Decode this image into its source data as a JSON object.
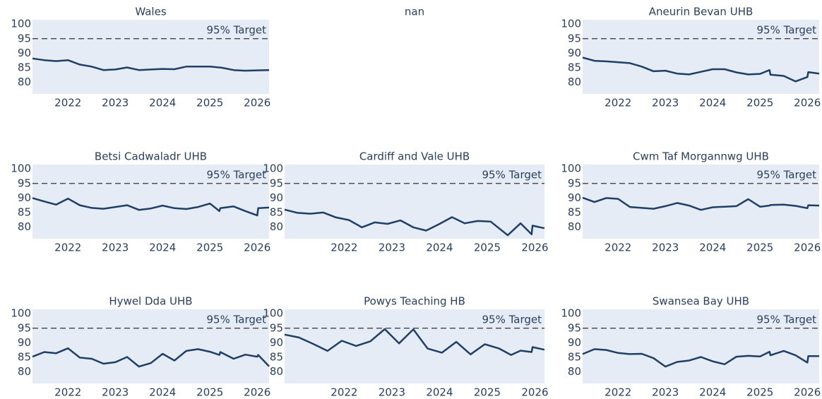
{
  "chart_data": [
    {
      "type": "line",
      "title": "Wales",
      "color": "#1f3f66",
      "target": 95,
      "target_label": "95% Target",
      "x": [
        2021.25,
        2021.5,
        2021.75,
        2022.0,
        2022.25,
        2022.5,
        2022.75,
        2023.0,
        2023.25,
        2023.5,
        2023.75,
        2024.0,
        2024.25,
        2024.5,
        2024.75,
        2025.0,
        2025.25,
        2025.5,
        2025.75,
        2026.0,
        2026.25
      ],
      "values": [
        88.2,
        87.6,
        87.3,
        87.6,
        86.1,
        85.4,
        84.2,
        84.4,
        85.1,
        84.2,
        84.4,
        84.6,
        84.5,
        85.4,
        85.4,
        85.4,
        85,
        84.2,
        84,
        84.1,
        84.2
      ],
      "xlim": [
        2021.25,
        2026.25
      ],
      "ylim": [
        76,
        101.5
      ],
      "xticks": [
        2022,
        2023,
        2024,
        2025,
        2026
      ],
      "yticks": [
        80,
        85,
        90,
        95,
        100
      ],
      "grid": false
    },
    {
      "type": "line",
      "title": "nan"
    },
    {
      "type": "line",
      "title": "Aneurin Bevan UHB",
      "color": "#1f3f66",
      "target": 95,
      "target_label": "95% Target",
      "x": [
        2021.25,
        2021.5,
        2021.75,
        2022.0,
        2022.25,
        2022.5,
        2022.75,
        2023.0,
        2023.25,
        2023.5,
        2023.75,
        2024.0,
        2024.25,
        2024.5,
        2024.75,
        2025.0,
        2025.2,
        2025.22,
        2025.5,
        2025.75,
        2026.0,
        2026.02,
        2026.25
      ],
      "values": [
        88.5,
        87.4,
        87.2,
        86.9,
        86.6,
        85.4,
        83.8,
        84,
        83,
        82.7,
        83.6,
        84.5,
        84.5,
        83.4,
        82.7,
        82.9,
        84.2,
        82.6,
        82.2,
        80.3,
        81.8,
        83.5,
        83
      ],
      "xlim": [
        2021.25,
        2026.25
      ],
      "ylim": [
        76,
        101.5
      ],
      "xticks": [
        2022,
        2023,
        2024,
        2025,
        2026
      ],
      "yticks": [
        80,
        85,
        90,
        95,
        100
      ],
      "grid": false
    },
    {
      "type": "line",
      "title": "Betsi Cadwaladr UHB",
      "color": "#1f3f66",
      "target": 95,
      "target_label": "95% Target",
      "x": [
        2021.25,
        2021.5,
        2021.75,
        2022.0,
        2022.25,
        2022.5,
        2022.75,
        2023.0,
        2023.25,
        2023.5,
        2023.75,
        2024.0,
        2024.25,
        2024.5,
        2024.75,
        2025.0,
        2025.2,
        2025.22,
        2025.5,
        2025.75,
        2026.0,
        2026.02,
        2026.25
      ],
      "values": [
        90,
        88.8,
        87.7,
        89.8,
        87.5,
        86.6,
        86.3,
        86.9,
        87.5,
        85.9,
        86.4,
        87.4,
        86.5,
        86.2,
        86.9,
        88.1,
        85.5,
        86.5,
        87.1,
        85.5,
        84,
        86.5,
        86.7
      ],
      "xlim": [
        2021.25,
        2026.25
      ],
      "ylim": [
        76,
        101.5
      ],
      "xticks": [
        2022,
        2023,
        2024,
        2025,
        2026
      ],
      "yticks": [
        80,
        85,
        90,
        95,
        100
      ],
      "grid": false
    },
    {
      "type": "line",
      "title": "Cardiff and Vale UHB",
      "color": "#1f3f66",
      "target": 95,
      "target_label": "95% Target",
      "x": [
        2020.75,
        2021.02,
        2021.29,
        2021.56,
        2021.83,
        2022.1,
        2022.37,
        2022.64,
        2022.91,
        2023.18,
        2023.45,
        2023.72,
        2023.99,
        2024.26,
        2024.53,
        2024.8,
        2025.07,
        2025.43,
        2025.7,
        2025.93,
        2025.95,
        2026.2
      ],
      "values": [
        86,
        84.9,
        84.6,
        85,
        83.3,
        82.4,
        79.9,
        81.6,
        81.1,
        82.3,
        79.9,
        78.8,
        81,
        83.4,
        81.3,
        82.1,
        81.9,
        77.2,
        81.3,
        77.5,
        80.5,
        79.6
      ],
      "xlim": [
        2020.75,
        2026.2
      ],
      "ylim": [
        76,
        101.5
      ],
      "xticks": [
        2022,
        2023,
        2024,
        2025,
        2026
      ],
      "yticks": [
        80,
        85,
        90,
        95,
        100
      ],
      "grid": false
    },
    {
      "type": "line",
      "title": "Cwm Taf Morgannwg UHB",
      "color": "#1f3f66",
      "target": 95,
      "target_label": "95% Target",
      "x": [
        2021.25,
        2021.5,
        2021.75,
        2022.0,
        2022.25,
        2022.5,
        2022.75,
        2023.0,
        2023.25,
        2023.5,
        2023.75,
        2024.0,
        2024.25,
        2024.5,
        2024.75,
        2025.0,
        2025.2,
        2025.22,
        2025.5,
        2025.75,
        2026.0,
        2026.02,
        2026.25
      ],
      "values": [
        90.1,
        88.6,
        90,
        89.7,
        86.9,
        86.6,
        86.3,
        87.2,
        88.3,
        87.4,
        85.9,
        86.8,
        87,
        87.2,
        89.6,
        87,
        87.4,
        87.6,
        87.7,
        87.3,
        86.5,
        87.5,
        87.4
      ],
      "xlim": [
        2021.25,
        2026.25
      ],
      "ylim": [
        76,
        101.5
      ],
      "xticks": [
        2022,
        2023,
        2024,
        2025,
        2026
      ],
      "yticks": [
        80,
        85,
        90,
        95,
        100
      ],
      "grid": false
    },
    {
      "type": "line",
      "title": "Hywel Dda UHB",
      "color": "#1f3f66",
      "target": 95,
      "target_label": "95% Target",
      "x": [
        2021.25,
        2021.5,
        2021.75,
        2022.0,
        2022.25,
        2022.5,
        2022.75,
        2023.0,
        2023.25,
        2023.5,
        2023.75,
        2024.0,
        2024.25,
        2024.5,
        2024.75,
        2025.0,
        2025.2,
        2025.22,
        2025.5,
        2025.75,
        2026.0,
        2026.02,
        2026.25
      ],
      "values": [
        85.2,
        86.8,
        86.4,
        88.1,
        84.9,
        84.5,
        82.8,
        83.3,
        85.1,
        81.8,
        83,
        86.2,
        83.9,
        87.2,
        87.8,
        86.9,
        85.8,
        86.8,
        84.5,
        85.9,
        85.2,
        85.8,
        81.9
      ],
      "xlim": [
        2021.25,
        2026.25
      ],
      "ylim": [
        76,
        101.5
      ],
      "xticks": [
        2022,
        2023,
        2024,
        2025,
        2026
      ],
      "yticks": [
        80,
        85,
        90,
        95,
        100
      ],
      "grid": false
    },
    {
      "type": "line",
      "title": "Powys Teaching HB",
      "color": "#1f3f66",
      "target": 95,
      "target_label": "95% Target",
      "x": [
        2020.75,
        2021.05,
        2021.35,
        2021.65,
        2021.95,
        2022.25,
        2022.55,
        2022.85,
        2023.15,
        2023.45,
        2023.75,
        2024.05,
        2024.35,
        2024.65,
        2024.95,
        2025.25,
        2025.5,
        2025.7,
        2025.93,
        2025.95,
        2026.2
      ],
      "values": [
        92.8,
        91.8,
        89.6,
        87.2,
        90.7,
        88.9,
        90.5,
        94.7,
        89.8,
        94.6,
        88,
        86.6,
        90.3,
        86,
        89.5,
        88,
        85.8,
        87.3,
        86.8,
        88.5,
        87.6
      ],
      "xlim": [
        2020.75,
        2026.2
      ],
      "ylim": [
        76,
        101.5
      ],
      "xticks": [
        2022,
        2023,
        2024,
        2025,
        2026
      ],
      "yticks": [
        80,
        85,
        90,
        95,
        100
      ],
      "grid": false
    },
    {
      "type": "line",
      "title": "Swansea Bay UHB",
      "color": "#1f3f66",
      "target": 95,
      "target_label": "95% Target",
      "x": [
        2021.25,
        2021.5,
        2021.75,
        2022.0,
        2022.25,
        2022.5,
        2022.75,
        2023.0,
        2023.25,
        2023.5,
        2023.75,
        2024.0,
        2024.25,
        2024.5,
        2024.75,
        2025.0,
        2025.2,
        2025.22,
        2025.5,
        2025.75,
        2026.0,
        2026.02,
        2026.25
      ],
      "values": [
        86.1,
        87.8,
        87.5,
        86.5,
        86.1,
        86.2,
        84.7,
        81.8,
        83.4,
        83.9,
        85.1,
        83.6,
        82.6,
        85.2,
        85.5,
        85.3,
        86.9,
        85.7,
        87.2,
        85.7,
        83.2,
        85.4,
        85.4
      ],
      "xlim": [
        2021.25,
        2026.25
      ],
      "ylim": [
        76,
        101.5
      ],
      "xticks": [
        2022,
        2023,
        2024,
        2025,
        2026
      ],
      "yticks": [
        80,
        85,
        90,
        95,
        100
      ],
      "grid": false
    }
  ]
}
